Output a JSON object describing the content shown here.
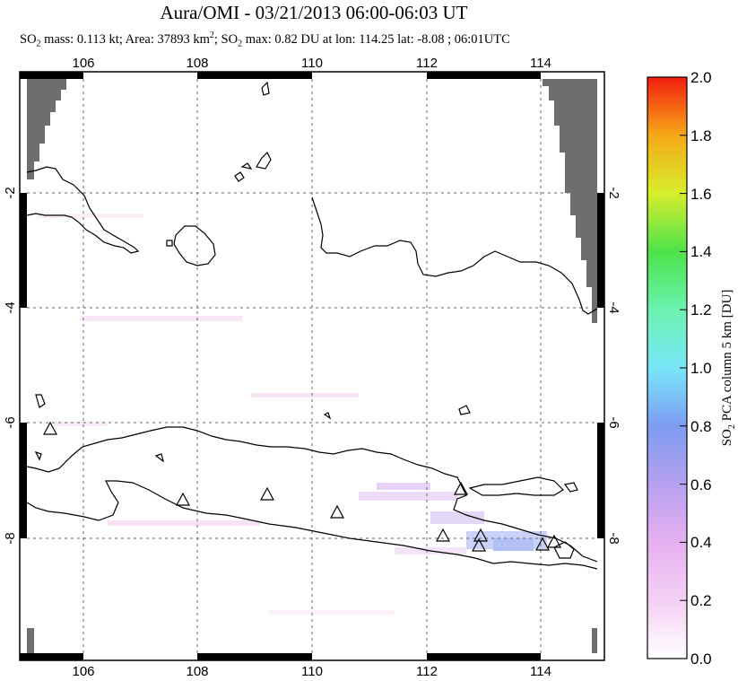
{
  "header": {
    "title": "Aura/OMI - 03/21/2013 06:00-06:03 UT",
    "subtitle_prefix": "SO",
    "subtitle_sub": "2",
    "subtitle_mid": " mass: 0.113 kt; Area: 37893 km",
    "subtitle_sup": "2",
    "subtitle_mid2": "; SO",
    "subtitle_sub2": "2",
    "subtitle_end": " max: 0.82 DU at lon: 114.25 lat: -8.08 ; 06:01UTC"
  },
  "map": {
    "lon_ticks": [
      "106",
      "108",
      "110",
      "112",
      "114"
    ],
    "lat_ticks": [
      "-2",
      "-4",
      "-6",
      "-8"
    ],
    "lat_ticks_right": [
      "-2",
      "-4",
      "-6",
      "-8"
    ],
    "colors": {
      "nodata": "#6e6e6e",
      "coast": "#000000",
      "grid": "#555555"
    }
  },
  "colorbar": {
    "label_prefix": "SO",
    "label_sub": "2",
    "label_rest": " PCA column 5 km [DU]",
    "ticks": [
      "0.0",
      "0.2",
      "0.4",
      "0.6",
      "0.8",
      "1.0",
      "1.2",
      "1.4",
      "1.6",
      "1.8",
      "2.0"
    ]
  },
  "volcanoes_count_note": ""
}
